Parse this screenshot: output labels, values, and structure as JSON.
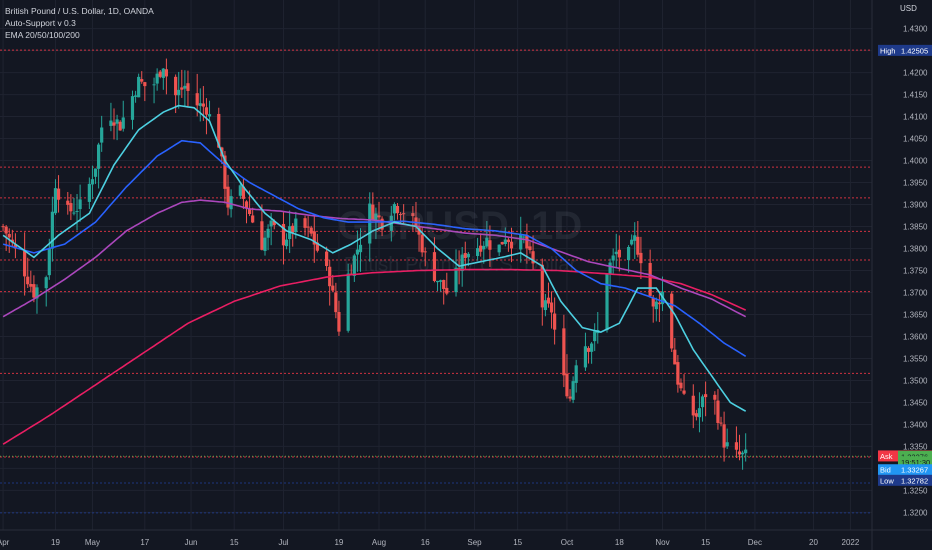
{
  "legend": {
    "title": "British Pound / U.S. Dollar, 1D, OANDA",
    "indicator1": "Auto-Support v 0.3",
    "indicator2": "EMA 20/50/100/200"
  },
  "watermark": {
    "symbol": "GBPUSD, 1D",
    "description": "British Pound / U.S. Dollar"
  },
  "currency_label": "USD",
  "colors": {
    "background": "#131722",
    "grid": "#1f2330",
    "up_candle": "#26a69a",
    "down_candle": "#ef5350",
    "ema20": "#4dd0e1",
    "ema50": "#2962ff",
    "ema100": "#ab47bc",
    "ema200": "#e91e63",
    "support_line": "#f23645",
    "ask": "#f23645",
    "bid": "#2196f3",
    "last": "#4caf50",
    "high_low": "#1e3a8a"
  },
  "chart_data": {
    "type": "candlestick",
    "title": "British Pound / U.S. Dollar, 1D, OANDA",
    "ylim": [
      1.316,
      1.4365
    ],
    "y_ticks": [
      1.32,
      1.325,
      1.33,
      1.335,
      1.34,
      1.345,
      1.35,
      1.355,
      1.36,
      1.365,
      1.37,
      1.375,
      1.38,
      1.385,
      1.39,
      1.395,
      1.4,
      1.405,
      1.41,
      1.415,
      1.42,
      1.425,
      1.43
    ],
    "x_ticks": [
      {
        "label": "Apr",
        "day": 0
      },
      {
        "label": "19",
        "day": 17
      },
      {
        "label": "May",
        "day": 29
      },
      {
        "label": "17",
        "day": 46
      },
      {
        "label": "Jun",
        "day": 61
      },
      {
        "label": "15",
        "day": 75
      },
      {
        "label": "Jul",
        "day": 91
      },
      {
        "label": "19",
        "day": 109
      },
      {
        "label": "Aug",
        "day": 122
      },
      {
        "label": "16",
        "day": 137
      },
      {
        "label": "Sep",
        "day": 153
      },
      {
        "label": "15",
        "day": 167
      },
      {
        "label": "Oct",
        "day": 183
      },
      {
        "label": "18",
        "day": 200
      },
      {
        "label": "Nov",
        "day": 214
      },
      {
        "label": "15",
        "day": 228
      },
      {
        "label": "Dec",
        "day": 244
      },
      {
        "label": "20",
        "day": 263
      },
      {
        "label": "2022",
        "day": 275
      }
    ],
    "x_range_days": [
      -1,
      282
    ],
    "series_anchors": {
      "close": [
        [
          0,
          1.385
        ],
        [
          5,
          1.378
        ],
        [
          10,
          1.37
        ],
        [
          14,
          1.374
        ],
        [
          17,
          1.395
        ],
        [
          20,
          1.388
        ],
        [
          26,
          1.39
        ],
        [
          30,
          1.399
        ],
        [
          33,
          1.412
        ],
        [
          38,
          1.408
        ],
        [
          44,
          1.418
        ],
        [
          48,
          1.416
        ],
        [
          52,
          1.422
        ],
        [
          55,
          1.414
        ],
        [
          59,
          1.417
        ],
        [
          62,
          1.413
        ],
        [
          66,
          1.412
        ],
        [
          70,
          1.404
        ],
        [
          73,
          1.39
        ],
        [
          77,
          1.393
        ],
        [
          80,
          1.388
        ],
        [
          84,
          1.381
        ],
        [
          87,
          1.385
        ],
        [
          91,
          1.382
        ],
        [
          96,
          1.386
        ],
        [
          100,
          1.383
        ],
        [
          103,
          1.378
        ],
        [
          106,
          1.373
        ],
        [
          109,
          1.362
        ],
        [
          112,
          1.374
        ],
        [
          116,
          1.382
        ],
        [
          119,
          1.389
        ],
        [
          123,
          1.386
        ],
        [
          127,
          1.39
        ],
        [
          131,
          1.388
        ],
        [
          134,
          1.385
        ],
        [
          138,
          1.376
        ],
        [
          141,
          1.373
        ],
        [
          145,
          1.369
        ],
        [
          147,
          1.374
        ],
        [
          150,
          1.379
        ],
        [
          153,
          1.38
        ],
        [
          157,
          1.382
        ],
        [
          160,
          1.379
        ],
        [
          163,
          1.383
        ],
        [
          166,
          1.381
        ],
        [
          169,
          1.382
        ],
        [
          172,
          1.376
        ],
        [
          175,
          1.367
        ],
        [
          178,
          1.366
        ],
        [
          181,
          1.352
        ],
        [
          184,
          1.346
        ],
        [
          187,
          1.359
        ],
        [
          190,
          1.358
        ],
        [
          193,
          1.361
        ],
        [
          196,
          1.375
        ],
        [
          199,
          1.379
        ],
        [
          202,
          1.377
        ],
        [
          205,
          1.382
        ],
        [
          208,
          1.376
        ],
        [
          211,
          1.366
        ],
        [
          214,
          1.37
        ],
        [
          216,
          1.362
        ],
        [
          219,
          1.35
        ],
        [
          222,
          1.343
        ],
        [
          225,
          1.342
        ],
        [
          228,
          1.347
        ],
        [
          231,
          1.345
        ],
        [
          234,
          1.336
        ],
        [
          236,
          1.334
        ],
        [
          238,
          1.333
        ],
        [
          241,
          1.3328
        ]
      ],
      "ema20": [
        [
          0,
          1.383
        ],
        [
          10,
          1.378
        ],
        [
          18,
          1.383
        ],
        [
          28,
          1.388
        ],
        [
          36,
          1.399
        ],
        [
          44,
          1.407
        ],
        [
          52,
          1.411
        ],
        [
          57,
          1.4125
        ],
        [
          62,
          1.412
        ],
        [
          67,
          1.409
        ],
        [
          72,
          1.4
        ],
        [
          78,
          1.394
        ],
        [
          85,
          1.388
        ],
        [
          92,
          1.384
        ],
        [
          100,
          1.382
        ],
        [
          107,
          1.379
        ],
        [
          113,
          1.381
        ],
        [
          120,
          1.384
        ],
        [
          127,
          1.386
        ],
        [
          134,
          1.385
        ],
        [
          141,
          1.38
        ],
        [
          148,
          1.376
        ],
        [
          155,
          1.377
        ],
        [
          162,
          1.378
        ],
        [
          168,
          1.379
        ],
        [
          175,
          1.376
        ],
        [
          181,
          1.368
        ],
        [
          188,
          1.362
        ],
        [
          194,
          1.361
        ],
        [
          200,
          1.363
        ],
        [
          206,
          1.371
        ],
        [
          212,
          1.371
        ],
        [
          218,
          1.365
        ],
        [
          224,
          1.357
        ],
        [
          230,
          1.351
        ],
        [
          236,
          1.345
        ],
        [
          241,
          1.343
        ]
      ],
      "ema50": [
        [
          0,
          1.381
        ],
        [
          10,
          1.379
        ],
        [
          20,
          1.381
        ],
        [
          30,
          1.386
        ],
        [
          40,
          1.394
        ],
        [
          50,
          1.401
        ],
        [
          58,
          1.4045
        ],
        [
          64,
          1.404
        ],
        [
          72,
          1.399
        ],
        [
          80,
          1.395
        ],
        [
          88,
          1.392
        ],
        [
          96,
          1.389
        ],
        [
          104,
          1.387
        ],
        [
          112,
          1.386
        ],
        [
          120,
          1.386
        ],
        [
          130,
          1.3862
        ],
        [
          140,
          1.3855
        ],
        [
          150,
          1.3845
        ],
        [
          160,
          1.384
        ],
        [
          170,
          1.383
        ],
        [
          178,
          1.38
        ],
        [
          186,
          1.375
        ],
        [
          194,
          1.372
        ],
        [
          202,
          1.371
        ],
        [
          210,
          1.369
        ],
        [
          218,
          1.367
        ],
        [
          226,
          1.363
        ],
        [
          234,
          1.3585
        ],
        [
          241,
          1.3555
        ]
      ],
      "ema100": [
        [
          0,
          1.3645
        ],
        [
          10,
          1.3685
        ],
        [
          20,
          1.373
        ],
        [
          30,
          1.378
        ],
        [
          40,
          1.384
        ],
        [
          50,
          1.388
        ],
        [
          58,
          1.3905
        ],
        [
          64,
          1.391
        ],
        [
          72,
          1.3905
        ],
        [
          80,
          1.389
        ],
        [
          90,
          1.3885
        ],
        [
          100,
          1.3875
        ],
        [
          110,
          1.3868
        ],
        [
          120,
          1.3865
        ],
        [
          130,
          1.3855
        ],
        [
          140,
          1.3845
        ],
        [
          150,
          1.3835
        ],
        [
          160,
          1.383
        ],
        [
          170,
          1.382
        ],
        [
          180,
          1.3795
        ],
        [
          190,
          1.377
        ],
        [
          200,
          1.3755
        ],
        [
          210,
          1.374
        ],
        [
          220,
          1.371
        ],
        [
          230,
          1.3685
        ],
        [
          241,
          1.3645
        ]
      ],
      "ema200": [
        [
          0,
          1.3355
        ],
        [
          15,
          1.342
        ],
        [
          30,
          1.349
        ],
        [
          45,
          1.356
        ],
        [
          60,
          1.363
        ],
        [
          75,
          1.368
        ],
        [
          90,
          1.3715
        ],
        [
          105,
          1.3735
        ],
        [
          120,
          1.3745
        ],
        [
          135,
          1.375
        ],
        [
          150,
          1.3752
        ],
        [
          165,
          1.3752
        ],
        [
          180,
          1.375
        ],
        [
          195,
          1.3743
        ],
        [
          210,
          1.3735
        ],
        [
          220,
          1.372
        ],
        [
          230,
          1.3695
        ],
        [
          241,
          1.366
        ]
      ]
    },
    "support_levels": [
      1.4251,
      1.3985,
      1.3915,
      1.3839,
      1.3774,
      1.3702,
      1.3516,
      1.3326
    ],
    "blue_levels": [
      1.3267,
      1.3199
    ],
    "price_labels": [
      {
        "label": "High",
        "value": "1.42505",
        "y": 1.42505,
        "kind": "high"
      },
      {
        "label": "Ask",
        "value": "1.33284",
        "y": 1.33284,
        "kind": "ask"
      },
      {
        "label": "",
        "value": "1.33276",
        "y": 1.33276,
        "kind": "last"
      },
      {
        "label": "",
        "value": "19:51:30",
        "y": 1.3315,
        "kind": "countdown"
      },
      {
        "label": "Bid",
        "value": "1.33267",
        "y": 1.3297,
        "kind": "bid"
      },
      {
        "label": "Low",
        "value": "1.32782",
        "y": 1.3273,
        "kind": "low"
      }
    ]
  }
}
